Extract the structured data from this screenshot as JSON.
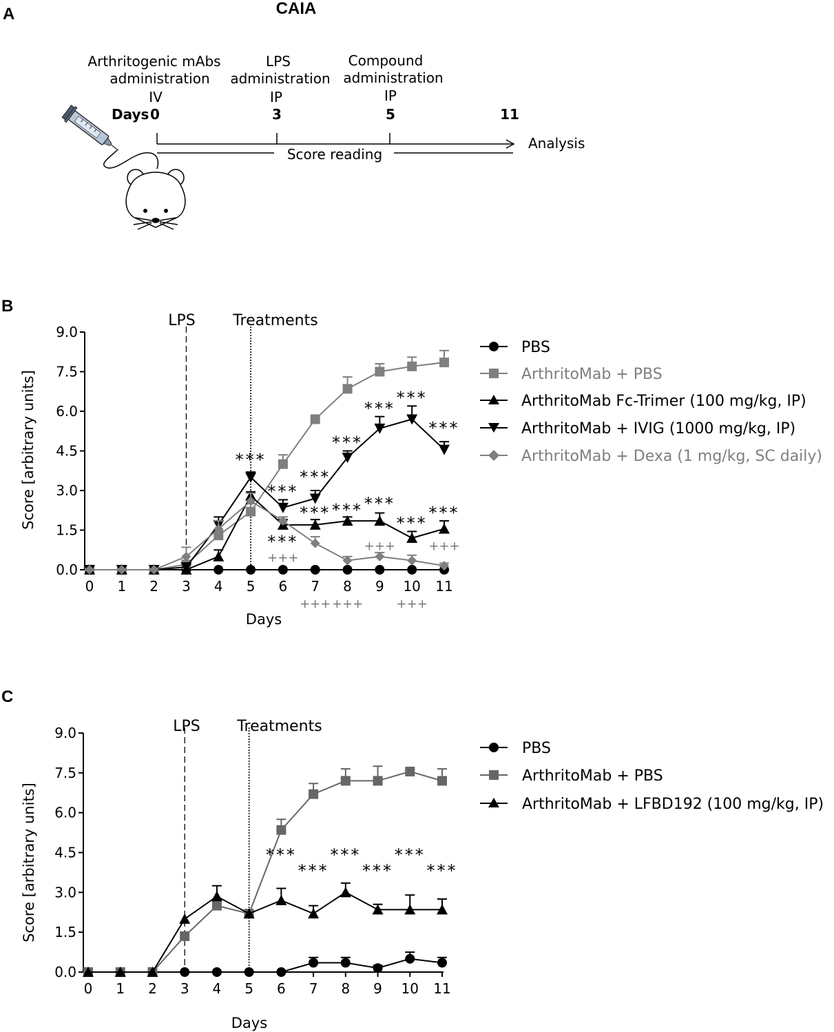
{
  "panels": {
    "a": "A",
    "b": "B",
    "c": "C"
  },
  "timeline": {
    "title": "CAIA",
    "step1_line1": "Arthritogenic mAbs",
    "step1_line2": "administration",
    "step1_route": "IV",
    "step2_line1": "LPS",
    "step2_line2": "administration",
    "step2_route": "IP",
    "step3_line1": "Compound",
    "step3_line2": "administration",
    "step3_route": "IP",
    "days_label": "Days",
    "day_0": "0",
    "day_3": "3",
    "day_5": "5",
    "day_11": "11",
    "score_reading": "Score reading",
    "analysis": "Analysis",
    "icons": [
      "syringe-icon",
      "mouse-icon"
    ]
  },
  "chart_data": [
    {
      "type": "line",
      "panel": "B",
      "xlabel": "Days",
      "ylabel": "Score [arbitrary units]",
      "ylim": [
        0,
        9
      ],
      "xlim": [
        0,
        11
      ],
      "yticks": [
        "0.0",
        "1.5",
        "3.0",
        "4.5",
        "6.0",
        "7.5",
        "9.0"
      ],
      "xticks": [
        "0",
        "1",
        "2",
        "3",
        "4",
        "5",
        "6",
        "7",
        "8",
        "9",
        "10",
        "11"
      ],
      "vlines": [
        {
          "x": 3,
          "label": "LPS",
          "style": "dashed"
        },
        {
          "x": 5,
          "label": "Treatments",
          "style": "dotted"
        }
      ],
      "series": [
        {
          "name": "PBS",
          "marker": "circle",
          "color": "#000000",
          "x": [
            0,
            1,
            2,
            3,
            4,
            5,
            6,
            7,
            8,
            9,
            10,
            11
          ],
          "values": [
            0,
            0,
            0,
            0,
            0,
            0,
            0,
            0,
            0,
            0,
            0,
            0
          ],
          "errors": [
            0,
            0,
            0,
            0,
            0,
            0,
            0,
            0,
            0,
            0,
            0,
            0
          ]
        },
        {
          "name": "ArthritoMab + PBS",
          "marker": "square",
          "color": "#7f7f7f",
          "x": [
            0,
            1,
            2,
            3,
            4,
            5,
            6,
            7,
            8,
            9,
            10,
            11
          ],
          "values": [
            0,
            0,
            0,
            0.2,
            1.3,
            2.2,
            4.0,
            5.7,
            6.85,
            7.5,
            7.7,
            7.85
          ],
          "errors": [
            0,
            0,
            0,
            0.1,
            0.2,
            0.3,
            0.35,
            0.1,
            0.45,
            0.3,
            0.35,
            0.45
          ]
        },
        {
          "name": "ArthritoMab Fc-Trimer (100 mg/kg, IP)",
          "marker": "triangle-up",
          "color": "#000000",
          "x": [
            0,
            1,
            2,
            3,
            4,
            5,
            6,
            7,
            8,
            9,
            10,
            11
          ],
          "values": [
            0,
            0,
            0,
            0,
            0.5,
            2.8,
            1.7,
            1.7,
            1.85,
            1.85,
            1.2,
            1.55
          ],
          "errors": [
            0,
            0,
            0,
            0,
            0.25,
            0.15,
            0.2,
            0.2,
            0.15,
            0.3,
            0.25,
            0.3
          ]
        },
        {
          "name": "ArthritoMab + IVIG (1000 mg/kg, IP)",
          "marker": "triangle-down",
          "color": "#000000",
          "x": [
            0,
            1,
            2,
            3,
            4,
            5,
            6,
            7,
            8,
            9,
            10,
            11
          ],
          "values": [
            0,
            0,
            0,
            0.1,
            1.7,
            3.5,
            2.35,
            2.7,
            4.25,
            5.35,
            5.7,
            4.55
          ],
          "errors": [
            0,
            0,
            0,
            0.1,
            0.3,
            0.2,
            0.3,
            0.3,
            0.25,
            0.45,
            0.5,
            0.3
          ]
        },
        {
          "name": "ArthritoMab + Dexa (1 mg/kg, SC daily)",
          "marker": "diamond",
          "color": "#7f7f7f",
          "x": [
            0,
            1,
            2,
            3,
            4,
            5,
            6,
            7,
            8,
            9,
            10,
            11
          ],
          "values": [
            0,
            0,
            0,
            0.5,
            1.55,
            2.6,
            1.85,
            1.0,
            0.35,
            0.5,
            0.35,
            0.15
          ],
          "errors": [
            0,
            0,
            0,
            0.35,
            0.3,
            0.3,
            0.15,
            0.25,
            0.15,
            0.15,
            0.2,
            0.1
          ]
        }
      ],
      "annotations": [
        {
          "text": "***",
          "x": 5,
          "y": 3.95,
          "color": "#000000"
        },
        {
          "text": "***",
          "x": 6,
          "y": 2.75,
          "color": "#000000"
        },
        {
          "text": "***",
          "x": 6,
          "y": 0.85,
          "color": "#000000"
        },
        {
          "text": "***",
          "x": 7,
          "y": 3.3,
          "color": "#000000"
        },
        {
          "text": "***",
          "x": 7,
          "y": 1.95,
          "color": "#000000"
        },
        {
          "text": "***",
          "x": 8,
          "y": 4.6,
          "color": "#000000"
        },
        {
          "text": "***",
          "x": 8,
          "y": 2.05,
          "color": "#000000"
        },
        {
          "text": "***",
          "x": 9,
          "y": 5.9,
          "color": "#000000"
        },
        {
          "text": "***",
          "x": 9,
          "y": 2.3,
          "color": "#000000"
        },
        {
          "text": "***",
          "x": 10,
          "y": 6.3,
          "color": "#000000"
        },
        {
          "text": "***",
          "x": 10,
          "y": 1.55,
          "color": "#000000"
        },
        {
          "text": "***",
          "x": 11,
          "y": 5.15,
          "color": "#000000"
        },
        {
          "text": "***",
          "x": 11,
          "y": 1.95,
          "color": "#000000"
        },
        {
          "text": "+++",
          "x": 6,
          "y": 0.3,
          "color": "#777777"
        },
        {
          "text": "+++",
          "x": 9,
          "y": 0.75,
          "color": "#777777"
        },
        {
          "text": "+++",
          "x": 11,
          "y": 0.75,
          "color": "#777777"
        },
        {
          "text": "+++",
          "x": 7,
          "y": -1.45,
          "color": "#777777"
        },
        {
          "text": "+++",
          "x": 8,
          "y": -1.45,
          "color": "#777777"
        },
        {
          "text": "+++",
          "x": 10,
          "y": -1.45,
          "color": "#777777"
        }
      ]
    },
    {
      "type": "line",
      "panel": "C",
      "xlabel": "Days",
      "ylabel": "Score [arbitrary units]",
      "ylim": [
        0,
        9
      ],
      "xlim": [
        0,
        11
      ],
      "yticks": [
        "0.0",
        "1.5",
        "3.0",
        "4.5",
        "6.0",
        "7.5",
        "9.0"
      ],
      "xticks": [
        "0",
        "1",
        "2",
        "3",
        "4",
        "5",
        "6",
        "7",
        "8",
        "9",
        "10",
        "11"
      ],
      "vlines": [
        {
          "x": 3,
          "label": "LPS",
          "style": "dashed"
        },
        {
          "x": 5,
          "label": "Treatments",
          "style": "dotted"
        }
      ],
      "series": [
        {
          "name": "PBS",
          "marker": "circle",
          "color": "#000000",
          "x": [
            0,
            1,
            2,
            3,
            4,
            5,
            6,
            7,
            8,
            9,
            10,
            11
          ],
          "values": [
            0,
            0,
            0,
            0,
            0,
            0,
            0,
            0.35,
            0.35,
            0.15,
            0.5,
            0.35
          ],
          "errors": [
            0,
            0,
            0,
            0,
            0,
            0,
            0,
            0.2,
            0.2,
            0.1,
            0.25,
            0.2
          ]
        },
        {
          "name": "ArthritoMab + PBS",
          "marker": "square",
          "color": "#666666",
          "x": [
            0,
            1,
            2,
            3,
            4,
            5,
            6,
            7,
            8,
            9,
            10,
            11
          ],
          "values": [
            0,
            0,
            0,
            1.35,
            2.5,
            2.2,
            5.35,
            6.7,
            7.2,
            7.2,
            7.55,
            7.2
          ],
          "errors": [
            0,
            0,
            0,
            0,
            0,
            0,
            0.4,
            0.4,
            0.45,
            0.55,
            0.1,
            0.45
          ]
        },
        {
          "name": "ArthritoMab + LFBD192 (100 mg/kg, IP)",
          "marker": "triangle-up",
          "color": "#000000",
          "x": [
            0,
            1,
            2,
            3,
            4,
            5,
            6,
            7,
            8,
            9,
            10,
            11
          ],
          "values": [
            0,
            0,
            0,
            2.0,
            2.85,
            2.2,
            2.7,
            2.2,
            3.0,
            2.35,
            2.35,
            2.35
          ],
          "errors": [
            0,
            0,
            0,
            0,
            0.4,
            0,
            0.45,
            0.3,
            0.35,
            0.2,
            0.55,
            0.4
          ]
        }
      ],
      "annotations": [
        {
          "text": "***",
          "x": 6,
          "y": 4.2,
          "color": "#000000"
        },
        {
          "text": "***",
          "x": 7,
          "y": 3.6,
          "color": "#000000"
        },
        {
          "text": "***",
          "x": 8,
          "y": 4.2,
          "color": "#000000"
        },
        {
          "text": "***",
          "x": 9,
          "y": 3.6,
          "color": "#000000"
        },
        {
          "text": "***",
          "x": 10,
          "y": 4.2,
          "color": "#000000"
        },
        {
          "text": "***",
          "x": 11,
          "y": 3.6,
          "color": "#000000"
        }
      ]
    }
  ]
}
